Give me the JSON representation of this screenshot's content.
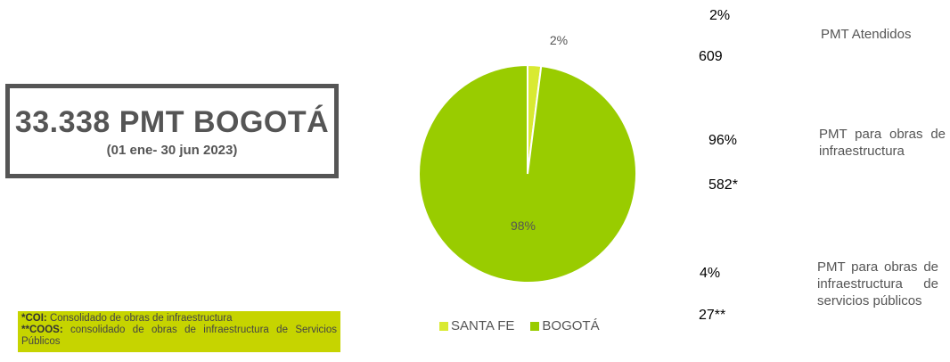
{
  "title": {
    "main": "33.338 PMT BOGOTÁ",
    "sub": "(01 ene- 30 jun 2023)"
  },
  "notes": {
    "coi_label": "*COI:",
    "coi_text": " Consolidado de obras de infraestructura",
    "coos_label": "**COOS:",
    "coos_text": " consolidado de obras de infraestructura de Servicios Públicos"
  },
  "chart_data": {
    "type": "pie",
    "slices": [
      {
        "name": "SANTA FE",
        "value": 2,
        "label": "2%",
        "color": "#d9ea32"
      },
      {
        "name": "BOGOTÁ",
        "value": 98,
        "label": "98%",
        "color": "#99cc00"
      }
    ],
    "legend": [
      "SANTA FE",
      "BOGOTÁ"
    ],
    "legend_position": "bottom"
  },
  "stats": [
    {
      "percent": "2%",
      "count": "609",
      "description": "PMT Atendidos"
    },
    {
      "percent": "96%",
      "count": "582*",
      "description": "PMT para obras de infraestructura"
    },
    {
      "percent": "4%",
      "count": "27**",
      "description": "PMT para obras de infraestructura de servicios públicos"
    }
  ],
  "colors": {
    "frame": "#555555",
    "note_bg": "#c6d400",
    "divider": "#1b1f3a"
  }
}
